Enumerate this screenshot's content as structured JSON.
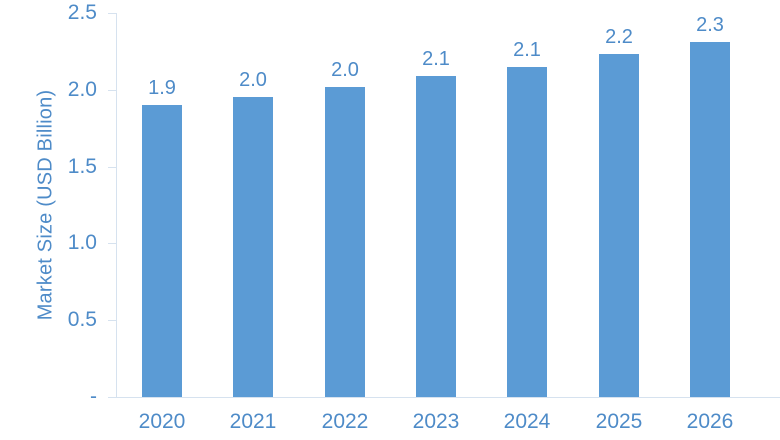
{
  "chart_data": {
    "type": "bar",
    "title": "",
    "categories": [
      "2020",
      "2021",
      "2022",
      "2023",
      "2024",
      "2025",
      "2026"
    ],
    "values": [
      1.9,
      2.0,
      2.0,
      2.1,
      2.1,
      2.2,
      2.3
    ],
    "data_labels": [
      "1.9",
      "2.0",
      "2.0",
      "2.1",
      "2.1",
      "2.2",
      "2.3"
    ],
    "bar_heights_precise": [
      1.9,
      1.95,
      2.02,
      2.09,
      2.15,
      2.23,
      2.31
    ],
    "xlabel": "",
    "ylabel": "Market Size (USD Billion)",
    "ylim": [
      0,
      2.5
    ],
    "yticks": [
      0,
      0.5,
      1.0,
      1.5,
      2.0,
      2.5
    ],
    "ytick_labels": [
      "-",
      "0.5",
      "1.0",
      "1.5",
      "2.0",
      "2.5"
    ],
    "grid": false,
    "legend": null,
    "bar_color": "#5B9BD5",
    "label_color": "#4E8BC8",
    "axis_color": "#D6E2EF"
  }
}
